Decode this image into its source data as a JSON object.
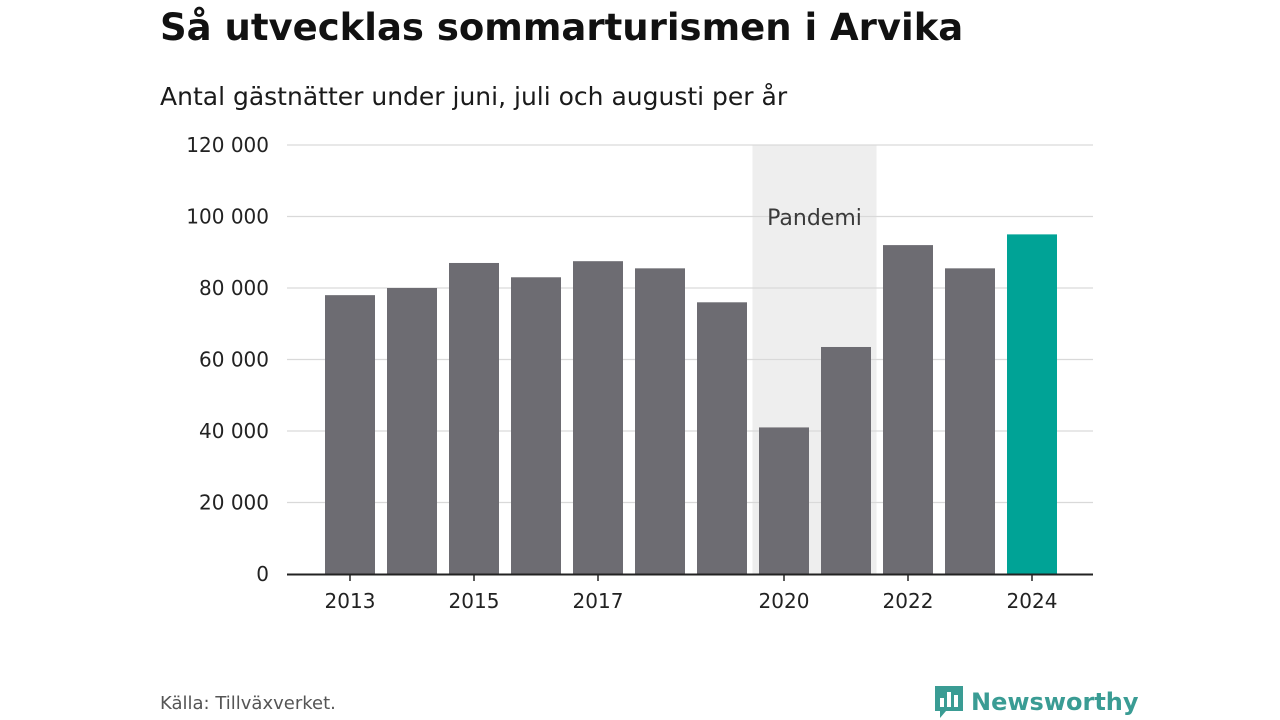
{
  "chart_data": {
    "type": "bar",
    "title": "Så utvecklas sommarturismen i Arvika",
    "subtitle": "Antal gästnätter under juni, juli och augusti per år",
    "categories": [
      "2013",
      "2014",
      "2015",
      "2016",
      "2017",
      "2018",
      "2019",
      "2020",
      "2021",
      "2022",
      "2023",
      "2024"
    ],
    "values": [
      78000,
      80000,
      87000,
      83000,
      87500,
      85500,
      76000,
      41000,
      63500,
      92000,
      85500,
      95000
    ],
    "x_tick_labels": [
      "2013",
      "2015",
      "2017",
      "2020",
      "2022",
      "2024"
    ],
    "y_ticks": [
      0,
      20000,
      40000,
      60000,
      80000,
      100000,
      120000
    ],
    "y_tick_labels": [
      "0",
      "20 000",
      "40 000",
      "60 000",
      "80 000",
      "100 000",
      "120 000"
    ],
    "ylim": [
      0,
      120000
    ],
    "grid": true,
    "annotation": {
      "label": "Pandemi",
      "from": "2020",
      "to": "2021"
    },
    "highlight_category": "2024",
    "colors": {
      "bar": "#6d6c72",
      "highlight": "#00a396",
      "band": "#eeeeee",
      "grid": "#d9d9d9",
      "axis": "#222222"
    }
  },
  "footer": {
    "source": "Källa: Tillväxverket.",
    "brand": "Newsworthy",
    "brand_icon": "bar-chart-speech-bubble-icon",
    "brand_color": "#3a9c94"
  }
}
